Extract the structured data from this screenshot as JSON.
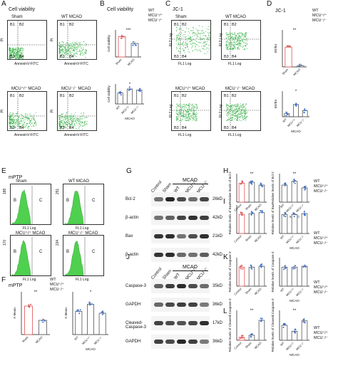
{
  "panels": {
    "A": {
      "letter": "A",
      "title": "Cell viability",
      "plots": [
        {
          "name": "Sham",
          "ylabel": "PI",
          "xlabel": "AnnexinV-FITC",
          "quads": [
            "B1",
            "B2",
            "B3",
            "B4"
          ]
        },
        {
          "name": "WT MCAO",
          "ylabel": "PI",
          "xlabel": "AnnexinV-FITC",
          "quads": [
            "B1",
            "B2",
            "B3",
            "B4"
          ]
        },
        {
          "name": "MCU⁺/⁺ MCAO",
          "ylabel": "PI",
          "xlabel": "AnnexinV-FITC",
          "quads": [
            "B1",
            "B2",
            "B3",
            "B4"
          ]
        },
        {
          "name": "MCU⁻/⁻ MCAO",
          "ylabel": "PI",
          "xlabel": "AnnexinV-FITC",
          "quads": [
            "B1",
            "B2",
            "B3",
            "B4"
          ]
        }
      ]
    },
    "B": {
      "letter": "B",
      "title": "Cell viability",
      "ylabel": "Cell viability",
      "sig_top": "***",
      "sig_bottom": "*",
      "group": "MCAO"
    },
    "C": {
      "letter": "C",
      "title": "JC-1",
      "plots": [
        {
          "name": "Sham",
          "ylabel": "FL2 Log",
          "xlabel": "FL1 Log",
          "quads": [
            "B1",
            "B2",
            "B3",
            "B4"
          ]
        },
        {
          "name": "WT MCAO",
          "ylabel": "FL2 Log",
          "xlabel": "FL1 Log",
          "quads": [
            "B1",
            "B2",
            "B3",
            "B4"
          ]
        },
        {
          "name": "MCU⁺/⁺ MCAO",
          "ylabel": "FL2 Log",
          "xlabel": "FL1 Log",
          "quads": [
            "B1",
            "B2",
            "B3",
            "B4"
          ]
        },
        {
          "name": "MCU⁻/⁻ MCAO",
          "ylabel": "FL2 Log",
          "xlabel": "FL1 Log",
          "quads": [
            "B1",
            "B2",
            "B3",
            "B4"
          ]
        }
      ]
    },
    "D": {
      "letter": "D",
      "title": "JC-1",
      "ylabel": "B2/B4",
      "sig_top": "**",
      "sig_bottom": "*",
      "group": "MCAO"
    },
    "E": {
      "letter": "E",
      "title": "mPTP",
      "plots": [
        {
          "name": "Sham",
          "count": "188",
          "xlabel": "FL1 Log",
          "gates": [
            "B",
            "C"
          ]
        },
        {
          "name": "WT MCAO",
          "count": "251",
          "xlabel": "FL1 Log",
          "gates": [
            "B",
            "C"
          ]
        },
        {
          "name": "MCU⁺/⁺ MCAO",
          "count": "170",
          "xlabel": "FL1 Log",
          "gates": [
            "B",
            "C"
          ]
        },
        {
          "name": "MCU⁻/⁻ MCAO",
          "count": "234",
          "xlabel": "FL1 Log",
          "gates": [
            "B",
            "C"
          ]
        }
      ]
    },
    "F": {
      "letter": "F",
      "title": "mPTP",
      "ylabel": "X-Mean",
      "sig_left": "**",
      "sig_right": "*",
      "group": "MCAO"
    },
    "G": {
      "letter": "G",
      "header": "MCAO",
      "lanes": [
        "Control",
        "Sham",
        "WT",
        "MCU⁺/⁺",
        "MCU⁻/⁻"
      ],
      "rows": [
        {
          "protein": "Bcl-2",
          "kda": "26kD"
        },
        {
          "protein": "β-actin",
          "kda": "42kD"
        },
        {
          "protein": "Bax",
          "kda": "21kD"
        },
        {
          "protein": "β-actin",
          "kda": "42kD"
        }
      ]
    },
    "H": {
      "letter": "H",
      "ylabel": "Relative levels of Bcl-2",
      "sig": "**",
      "group": "MCAO"
    },
    "I": {
      "letter": "I",
      "ylabel": "Relative levels of Bax",
      "group": "MCAO"
    },
    "J": {
      "letter": "J",
      "header": "MCAO",
      "lanes": [
        "Control",
        "Sham",
        "WT",
        "MCU⁺/⁺",
        "MCU⁻/⁻"
      ],
      "rows": [
        {
          "protein": "Caspase-3",
          "kda": "35kD"
        },
        {
          "protein": "GAPDH",
          "kda": "36kD"
        },
        {
          "protein": "Cleaved-Caspase-3",
          "kda": "17kD"
        },
        {
          "protein": "GAPDH",
          "kda": "36kD"
        }
      ]
    },
    "K": {
      "letter": "K",
      "ylabel": "Relative levels of Caspase-3",
      "group": "MCAO"
    },
    "L": {
      "letter": "L",
      "ylabel": "Relative levels of Cleaved-Caspase-3",
      "sig": "**",
      "group": "MCAO"
    }
  },
  "legend": [
    "WT",
    "MCU⁺/⁺",
    "MCU⁻/⁻"
  ],
  "colors": {
    "sham_bar": "#e05050",
    "green_hist": "#4fd04f",
    "dots": "#1b8f3a",
    "blot_dark": "#2b2b2b"
  },
  "chart_data": [
    {
      "type": "bar",
      "id": "B-top",
      "categories": [
        "Sham",
        "MCAO"
      ],
      "values": [
        0.9,
        0.6
      ],
      "ylim": [
        0,
        1.2
      ]
    },
    {
      "type": "bar",
      "id": "B-bottom",
      "categories": [
        "WT",
        "MCU⁺/⁺",
        "MCU⁻/⁻"
      ],
      "values": [
        0.55,
        0.75,
        0.7
      ],
      "ylim": [
        0,
        1.0
      ]
    },
    {
      "type": "bar",
      "id": "D-top",
      "categories": [
        "Sham",
        "MCAO"
      ],
      "values": [
        1.6,
        0.1
      ],
      "ylim": [
        0,
        3
      ]
    },
    {
      "type": "bar",
      "id": "D-bottom",
      "categories": [
        "WT",
        "MCU⁺/⁺",
        "MCU⁻/⁻"
      ],
      "values": [
        0.3,
        1.2,
        0.6
      ],
      "ylim": [
        0,
        2.5
      ]
    },
    {
      "type": "bar",
      "id": "F-left",
      "categories": [
        "Sham",
        "MCAO"
      ],
      "values": [
        8.0,
        4.0
      ],
      "ylim": [
        0,
        12
      ]
    },
    {
      "type": "bar",
      "id": "F-right",
      "categories": [
        "WT",
        "MCU⁺/⁺",
        "MCU⁻/⁻"
      ],
      "values": [
        6.5,
        8.5,
        6.0
      ],
      "ylim": [
        0,
        12
      ]
    },
    {
      "type": "bar",
      "id": "H-left",
      "categories": [
        "Control",
        "Sham",
        "MCAO"
      ],
      "values": [
        1.0,
        1.05,
        0.9
      ],
      "ylim": [
        0,
        1.5
      ]
    },
    {
      "type": "bar",
      "id": "H-right",
      "categories": [
        "WT",
        "MCU⁺/⁺",
        "MCU⁻/⁻"
      ],
      "values": [
        0.9,
        1.1,
        0.75
      ],
      "ylim": [
        0,
        1.5
      ]
    },
    {
      "type": "bar",
      "id": "I-left",
      "categories": [
        "Control",
        "Sham",
        "MCAO"
      ],
      "values": [
        1.0,
        1.05,
        1.1
      ],
      "ylim": [
        0,
        1.5
      ]
    },
    {
      "type": "bar",
      "id": "I-right",
      "categories": [
        "WT",
        "MCU⁺/⁺",
        "MCU⁻/⁻"
      ],
      "values": [
        1.0,
        1.0,
        1.05
      ],
      "ylim": [
        0,
        1.5
      ]
    },
    {
      "type": "bar",
      "id": "K-left",
      "categories": [
        "Control",
        "Sham",
        "MCAO"
      ],
      "values": [
        1.0,
        1.0,
        1.05
      ],
      "ylim": [
        0,
        1.5
      ]
    },
    {
      "type": "bar",
      "id": "K-right",
      "categories": [
        "WT",
        "MCU⁺/⁺",
        "MCU⁻/⁻"
      ],
      "values": [
        1.0,
        1.0,
        1.05
      ],
      "ylim": [
        0,
        1.5
      ]
    },
    {
      "type": "bar",
      "id": "L-left",
      "categories": [
        "Control",
        "Sham",
        "MCAO"
      ],
      "values": [
        0.3,
        0.5,
        2.0
      ],
      "ylim": [
        0,
        3
      ]
    },
    {
      "type": "bar",
      "id": "L-right",
      "categories": [
        "WT",
        "MCU⁺/⁺",
        "MCU⁻/⁻"
      ],
      "values": [
        1.0,
        0.6,
        1.3
      ],
      "ylim": [
        0,
        2
      ]
    }
  ]
}
